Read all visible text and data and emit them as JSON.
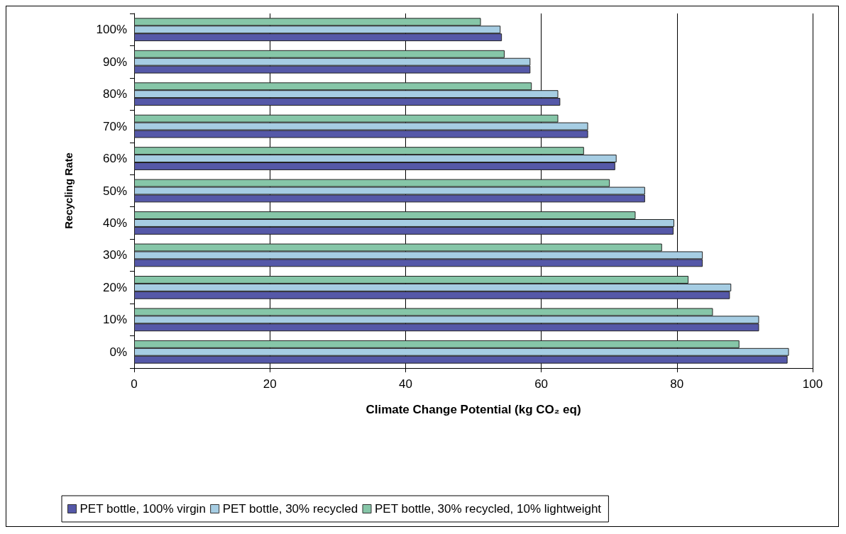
{
  "chart_data": {
    "type": "bar",
    "orientation": "horizontal",
    "xlabel": "Climate Change Potential (kg CO₂ eq)",
    "ylabel": "Recycling Rate",
    "categories": [
      "100%",
      "90%",
      "80%",
      "70%",
      "60%",
      "50%",
      "40%",
      "30%",
      "20%",
      "10%",
      "0%"
    ],
    "series": [
      {
        "name": "PET bottle, 100% virgin",
        "color": "#5558a8",
        "values": [
          54.2,
          58.4,
          62.8,
          66.9,
          70.9,
          75.3,
          79.5,
          83.8,
          87.8,
          92.1,
          96.3
        ]
      },
      {
        "name": "PET bottle, 30% recycled",
        "color": "#a6cde3",
        "values": [
          54.0,
          58.4,
          62.5,
          66.9,
          71.1,
          75.3,
          79.6,
          83.8,
          88.0,
          92.1,
          96.5
        ]
      },
      {
        "name": "PET bottle, 30% recycled, 10% lightweight",
        "color": "#86c6a8",
        "values": [
          51.1,
          54.6,
          58.6,
          62.5,
          66.3,
          70.1,
          73.9,
          77.8,
          81.7,
          85.3,
          89.2
        ]
      }
    ],
    "xlim": [
      0,
      100
    ],
    "xticks": [
      0,
      20,
      40,
      60,
      80,
      100
    ],
    "grid": "x",
    "legend": "bottom"
  }
}
